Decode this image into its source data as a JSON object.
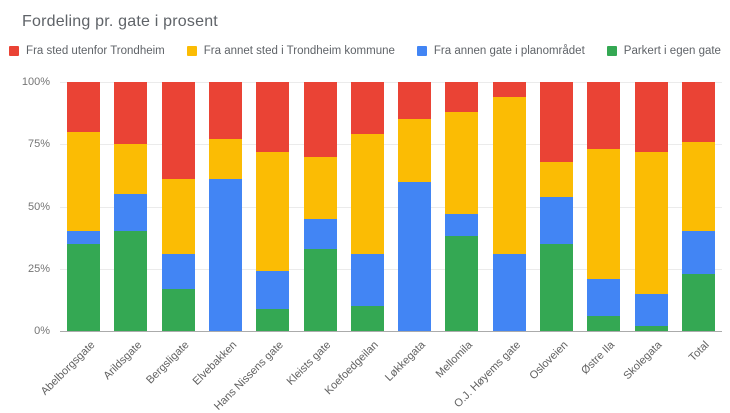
{
  "chart_data": {
    "type": "bar",
    "variant": "stacked-100-percent",
    "title": "Fordeling pr. gate i prosent",
    "xlabel": "",
    "ylabel": "",
    "grid": true,
    "legend_position": "top",
    "legend_order": [
      "Fra sted utenfor Trondheim",
      "Fra annet sted i Trondheim kommune",
      "Fra annen gate i planområdet",
      "Parkert i egen gate"
    ],
    "y_axis": {
      "min": 0,
      "max": 100,
      "ticks": [
        {
          "value": 0,
          "label": "0%"
        },
        {
          "value": 25,
          "label": "25%"
        },
        {
          "value": 50,
          "label": "50%"
        },
        {
          "value": 75,
          "label": "75%"
        },
        {
          "value": 100,
          "label": "100%"
        }
      ]
    },
    "categories": [
      "Abelborgsgate",
      "Arildsgate",
      "Bergsligate",
      "Elvebakken",
      "Hans Nissens gate",
      "Kleists gate",
      "Koefoedgeilan",
      "Løkkegata",
      "Mellomila",
      "O.J. Høyems gate",
      "Osloveien",
      "Østre Ila",
      "Skolegata",
      "Total"
    ],
    "series": [
      {
        "name": "Parkert i egen gate",
        "color": "#34A853",
        "values": [
          35,
          40,
          17,
          0,
          9,
          33,
          10,
          0,
          38,
          0,
          35,
          6,
          2,
          23
        ]
      },
      {
        "name": "Fra annen gate i planområdet",
        "color": "#4285F4",
        "values": [
          5,
          15,
          14,
          61,
          15,
          12,
          21,
          60,
          9,
          31,
          19,
          15,
          13,
          17
        ]
      },
      {
        "name": "Fra annet sted i Trondheim kommune",
        "color": "#FBBC04",
        "values": [
          40,
          20,
          30,
          16,
          48,
          25,
          48,
          25,
          41,
          63,
          14,
          52,
          57,
          36
        ]
      },
      {
        "name": "Fra sted utenfor Trondheim",
        "color": "#EA4335",
        "values": [
          20,
          25,
          39,
          23,
          28,
          30,
          21,
          15,
          12,
          6,
          32,
          27,
          28,
          24
        ]
      }
    ]
  }
}
